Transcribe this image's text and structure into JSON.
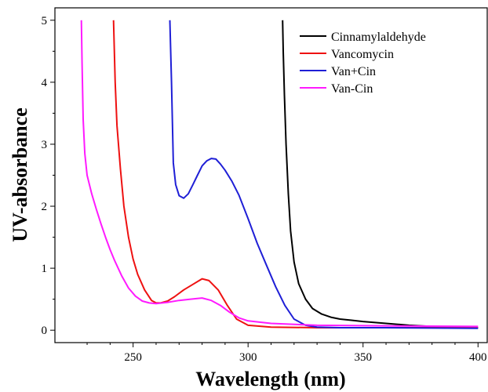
{
  "chart_data": {
    "type": "line",
    "title": "",
    "xlabel": "Wavelength (nm)",
    "ylabel": "UV-absorbance",
    "xlim": [
      216,
      404
    ],
    "ylim": [
      -0.2,
      5.2
    ],
    "xticks": [
      250,
      300,
      350,
      400
    ],
    "yticks": [
      0,
      1,
      2,
      3,
      4,
      5
    ],
    "grid": false,
    "legend_position": "top-right",
    "series": [
      {
        "name": "Cinnamylaldehyde",
        "color": "#000000",
        "x": [
          315.0,
          315.3,
          315.8,
          316.5,
          317.5,
          318.5,
          320,
          322,
          325,
          328,
          332,
          336,
          340,
          345,
          350,
          360,
          370,
          380,
          400
        ],
        "y": [
          5.0,
          4.5,
          3.8,
          3.0,
          2.2,
          1.6,
          1.1,
          0.75,
          0.5,
          0.35,
          0.26,
          0.21,
          0.18,
          0.16,
          0.14,
          0.11,
          0.08,
          0.06,
          0.04
        ]
      },
      {
        "name": "Vancomycin",
        "color": "#ee1111",
        "x": [
          241.5,
          242.2,
          243,
          244.5,
          246,
          248,
          250,
          252,
          255,
          258,
          260,
          262,
          265,
          268,
          272,
          276,
          280,
          283,
          287,
          291,
          295,
          300,
          310,
          330,
          360,
          400
        ],
        "y": [
          5.0,
          4.0,
          3.3,
          2.6,
          2.0,
          1.5,
          1.15,
          0.9,
          0.65,
          0.48,
          0.44,
          0.44,
          0.47,
          0.54,
          0.65,
          0.74,
          0.83,
          0.8,
          0.65,
          0.4,
          0.18,
          0.08,
          0.05,
          0.04,
          0.04,
          0.04
        ]
      },
      {
        "name": "Van+Cin",
        "color": "#1f1fd6",
        "x": [
          266.0,
          266.7,
          267.5,
          268.5,
          270,
          272,
          274,
          276,
          278,
          280,
          282,
          284,
          286,
          288,
          290,
          293,
          296,
          300,
          304,
          308,
          312,
          316,
          320,
          325,
          330,
          340,
          360,
          400
        ],
        "y": [
          5.0,
          4.0,
          2.7,
          2.35,
          2.17,
          2.13,
          2.2,
          2.35,
          2.5,
          2.65,
          2.73,
          2.77,
          2.76,
          2.68,
          2.58,
          2.4,
          2.18,
          1.8,
          1.4,
          1.05,
          0.7,
          0.4,
          0.18,
          0.08,
          0.05,
          0.04,
          0.04,
          0.03
        ]
      },
      {
        "name": "Van-Cin",
        "color": "#ff1aff",
        "x": [
          227.5,
          227.8,
          228.3,
          229,
          230,
          232,
          234,
          236,
          238,
          240,
          242,
          245,
          248,
          251,
          254,
          257,
          260,
          265,
          270,
          275,
          280,
          284,
          288,
          292,
          296,
          300,
          310,
          330,
          360,
          400
        ],
        "y": [
          5.0,
          4.3,
          3.4,
          2.85,
          2.5,
          2.2,
          1.95,
          1.72,
          1.5,
          1.3,
          1.12,
          0.88,
          0.68,
          0.55,
          0.47,
          0.44,
          0.43,
          0.45,
          0.48,
          0.5,
          0.52,
          0.48,
          0.4,
          0.29,
          0.2,
          0.15,
          0.11,
          0.08,
          0.07,
          0.06
        ]
      }
    ]
  }
}
